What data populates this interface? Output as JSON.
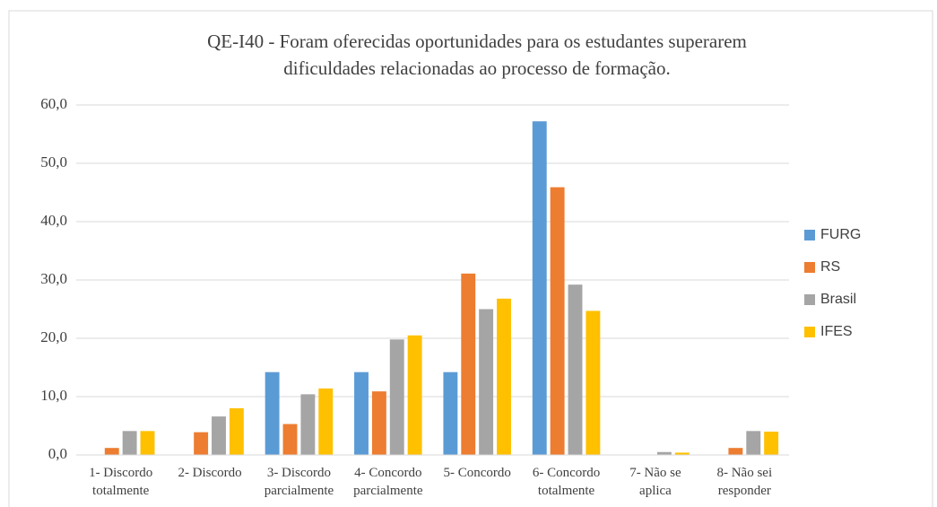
{
  "chart_data": {
    "type": "bar",
    "title": [
      "QE-I40 - Foram oferecidas oportunidades para os estudantes superarem",
      "dificuldades relacionadas ao processo de formação."
    ],
    "categories": [
      [
        "1- Discordo",
        "totalmente"
      ],
      [
        "2- Discordo"
      ],
      [
        "3- Discordo",
        "parcialmente"
      ],
      [
        "4- Concordo",
        "parcialmente"
      ],
      [
        "5- Concordo"
      ],
      [
        "6- Concordo",
        "totalmente"
      ],
      [
        "7- Não se",
        "aplica"
      ],
      [
        "8- Não sei",
        "responder"
      ]
    ],
    "series": [
      {
        "name": "FURG",
        "color": "#5b9bd5",
        "values": [
          0,
          0,
          14.2,
          14.2,
          14.2,
          57.2,
          0,
          0
        ]
      },
      {
        "name": "RS",
        "color": "#ed7d31",
        "values": [
          1.2,
          3.9,
          5.3,
          10.9,
          31.1,
          45.9,
          0,
          1.2
        ]
      },
      {
        "name": "Brasil",
        "color": "#a5a5a5",
        "values": [
          4.1,
          6.6,
          10.4,
          19.8,
          25.0,
          29.2,
          0.5,
          4.1
        ]
      },
      {
        "name": "IFES",
        "color": "#ffc000",
        "values": [
          4.1,
          8.0,
          11.4,
          20.5,
          26.8,
          24.7,
          0.4,
          4.0
        ]
      }
    ],
    "ylim": [
      0,
      60
    ],
    "yticks": [
      {
        "value": 0,
        "label": "0,0"
      },
      {
        "value": 10,
        "label": "10,0"
      },
      {
        "value": 20,
        "label": "20,0"
      },
      {
        "value": 30,
        "label": "30,0"
      },
      {
        "value": 40,
        "label": "40,0"
      },
      {
        "value": 50,
        "label": "50,0"
      },
      {
        "value": 60,
        "label": "60,0"
      }
    ],
    "grid": true,
    "legend": "right"
  }
}
